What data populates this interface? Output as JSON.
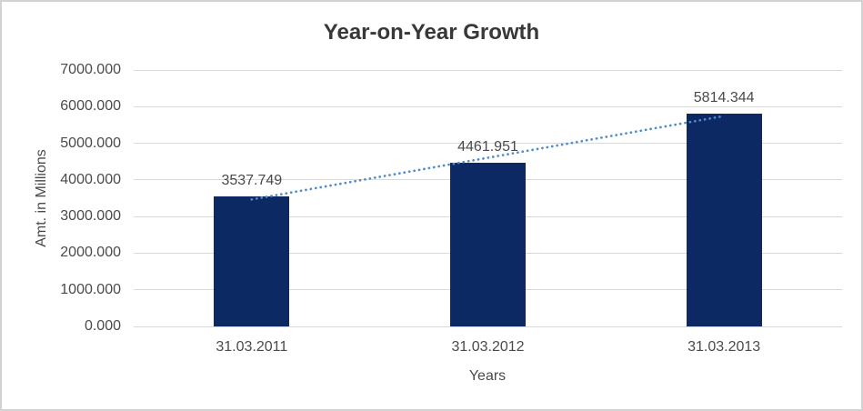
{
  "window": {
    "background": "#ffffff",
    "border_color": "#d2d2d2"
  },
  "chart_data": {
    "type": "bar",
    "title": "Year-on-Year Growth",
    "xlabel": "Years",
    "ylabel": "Amt. in Millions",
    "categories": [
      "31.03.2011",
      "31.03.2012",
      "31.03.2013"
    ],
    "values": [
      3537.749,
      4461.951,
      5814.344
    ],
    "data_labels": [
      "3537.749",
      "4461.951",
      "5814.344"
    ],
    "ylim": [
      0,
      7000
    ],
    "y_tick_step": 1000,
    "y_tick_labels": [
      "0.000",
      "1000.000",
      "2000.000",
      "3000.000",
      "4000.000",
      "5000.000",
      "6000.000",
      "7000.000"
    ],
    "grid": "horizontal",
    "legend": "none",
    "trendline": {
      "type": "linear",
      "style": "dotted"
    },
    "colors": {
      "bar": "#0d2963",
      "gridline": "#d9d9d9",
      "trendline": "#4f8bcd",
      "tick_text": "#4a4a4a",
      "title_text": "#383838"
    }
  }
}
